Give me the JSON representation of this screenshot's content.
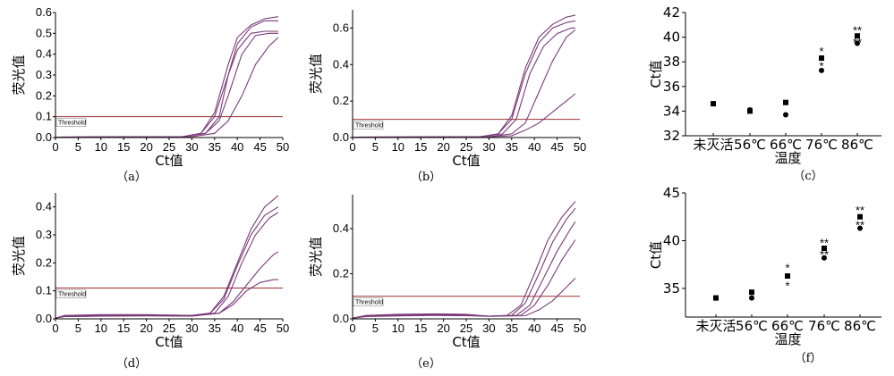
{
  "figure": {
    "background": "#ffffff",
    "curve_color": "#7a3a78",
    "threshold_color": "#9b3030"
  },
  "chart_data": [
    {
      "id": "a",
      "type": "line",
      "caption": "（a）",
      "xlabel": "Ct值",
      "ylabel": "荧光值",
      "xlim": [
        0,
        50
      ],
      "ylim": [
        0,
        0.6
      ],
      "xticks": [
        0,
        5,
        10,
        15,
        20,
        25,
        30,
        35,
        40,
        45,
        50
      ],
      "yticks": [
        0.0,
        0.1,
        0.2,
        0.3,
        0.4,
        0.5,
        0.6
      ],
      "ytick_labels": [
        "0.0",
        "0.1",
        "0.2",
        "0.3",
        "0.4",
        "0.5",
        "0.6"
      ],
      "threshold": {
        "label": "Threshold",
        "value": 0.1
      },
      "series": [
        {
          "points": [
            [
              0,
              0.002
            ],
            [
              28,
              0.004
            ],
            [
              32,
              0.02
            ],
            [
              35,
              0.12
            ],
            [
              38,
              0.35
            ],
            [
              40,
              0.48
            ],
            [
              43,
              0.54
            ],
            [
              46,
              0.57
            ],
            [
              49,
              0.58
            ]
          ]
        },
        {
          "points": [
            [
              0,
              0.002
            ],
            [
              28,
              0.004
            ],
            [
              32,
              0.02
            ],
            [
              35,
              0.1
            ],
            [
              38,
              0.3
            ],
            [
              40,
              0.45
            ],
            [
              43,
              0.53
            ],
            [
              46,
              0.56
            ],
            [
              49,
              0.56
            ]
          ]
        },
        {
          "points": [
            [
              0,
              0.002
            ],
            [
              28,
              0.004
            ],
            [
              33,
              0.02
            ],
            [
              36,
              0.1
            ],
            [
              38,
              0.3
            ],
            [
              40,
              0.42
            ],
            [
              43,
              0.5
            ],
            [
              46,
              0.51
            ],
            [
              49,
              0.51
            ]
          ]
        },
        {
          "points": [
            [
              0,
              0.002
            ],
            [
              28,
              0.004
            ],
            [
              33,
              0.02
            ],
            [
              36,
              0.08
            ],
            [
              38,
              0.2
            ],
            [
              41,
              0.4
            ],
            [
              44,
              0.49
            ],
            [
              47,
              0.5
            ],
            [
              49,
              0.5
            ]
          ]
        },
        {
          "points": [
            [
              0,
              0.002
            ],
            [
              30,
              0.004
            ],
            [
              35,
              0.02
            ],
            [
              38,
              0.08
            ],
            [
              41,
              0.2
            ],
            [
              44,
              0.35
            ],
            [
              47,
              0.44
            ],
            [
              49,
              0.48
            ]
          ]
        }
      ]
    },
    {
      "id": "b",
      "type": "line",
      "caption": "（b）",
      "xlabel": "Ct值",
      "ylabel": "荧光值",
      "xlim": [
        0,
        50
      ],
      "ylim": [
        0,
        0.7
      ],
      "xticks": [
        0,
        5,
        10,
        15,
        20,
        25,
        30,
        35,
        40,
        45,
        50
      ],
      "yticks": [
        0.0,
        0.2,
        0.4,
        0.6
      ],
      "ytick_labels": [
        "0.0",
        "0.2",
        "0.4",
        "0.6"
      ],
      "threshold": {
        "label": "Threshold",
        "value": 0.1
      },
      "series": [
        {
          "points": [
            [
              0,
              0.002
            ],
            [
              28,
              0.004
            ],
            [
              32,
              0.02
            ],
            [
              35,
              0.12
            ],
            [
              38,
              0.38
            ],
            [
              41,
              0.55
            ],
            [
              44,
              0.62
            ],
            [
              47,
              0.66
            ],
            [
              49,
              0.67
            ]
          ]
        },
        {
          "points": [
            [
              0,
              0.002
            ],
            [
              28,
              0.004
            ],
            [
              32,
              0.02
            ],
            [
              35,
              0.1
            ],
            [
              38,
              0.35
            ],
            [
              41,
              0.52
            ],
            [
              44,
              0.6
            ],
            [
              47,
              0.63
            ],
            [
              49,
              0.64
            ]
          ]
        },
        {
          "points": [
            [
              0,
              0.002
            ],
            [
              28,
              0.004
            ],
            [
              33,
              0.02
            ],
            [
              36,
              0.1
            ],
            [
              39,
              0.35
            ],
            [
              42,
              0.5
            ],
            [
              45,
              0.57
            ],
            [
              48,
              0.6
            ],
            [
              49,
              0.6
            ]
          ]
        },
        {
          "points": [
            [
              0,
              0.002
            ],
            [
              30,
              0.004
            ],
            [
              35,
              0.02
            ],
            [
              38,
              0.08
            ],
            [
              41,
              0.25
            ],
            [
              44,
              0.42
            ],
            [
              47,
              0.55
            ],
            [
              49,
              0.59
            ]
          ]
        },
        {
          "points": [
            [
              0,
              0.002
            ],
            [
              30,
              0.004
            ],
            [
              35,
              0.01
            ],
            [
              38,
              0.04
            ],
            [
              41,
              0.08
            ],
            [
              44,
              0.14
            ],
            [
              47,
              0.2
            ],
            [
              49,
              0.24
            ]
          ]
        }
      ]
    },
    {
      "id": "d",
      "type": "line",
      "caption": "（d）",
      "xlabel": "Ct值",
      "ylabel": "荧光值",
      "xlim": [
        0,
        50
      ],
      "ylim": [
        0,
        0.45
      ],
      "xticks": [
        0,
        5,
        10,
        15,
        20,
        25,
        30,
        35,
        40,
        45,
        50
      ],
      "yticks": [
        0.0,
        0.1,
        0.2,
        0.3,
        0.4
      ],
      "ytick_labels": [
        "0.0",
        "0.1",
        "0.2",
        "0.3",
        "0.4"
      ],
      "threshold": {
        "label": "Threshold",
        "value": 0.11
      },
      "series": [
        {
          "points": [
            [
              0,
              0.003
            ],
            [
              2,
              0.012
            ],
            [
              10,
              0.015
            ],
            [
              20,
              0.015
            ],
            [
              30,
              0.012
            ],
            [
              34,
              0.02
            ],
            [
              37,
              0.08
            ],
            [
              40,
              0.2
            ],
            [
              43,
              0.32
            ],
            [
              46,
              0.4
            ],
            [
              49,
              0.44
            ]
          ]
        },
        {
          "points": [
            [
              0,
              0.003
            ],
            [
              2,
              0.01
            ],
            [
              10,
              0.013
            ],
            [
              20,
              0.014
            ],
            [
              30,
              0.012
            ],
            [
              34,
              0.02
            ],
            [
              37,
              0.07
            ],
            [
              40,
              0.19
            ],
            [
              43,
              0.3
            ],
            [
              46,
              0.37
            ],
            [
              49,
              0.4
            ]
          ]
        },
        {
          "points": [
            [
              0,
              0.003
            ],
            [
              2,
              0.01
            ],
            [
              10,
              0.012
            ],
            [
              20,
              0.013
            ],
            [
              30,
              0.012
            ],
            [
              35,
              0.02
            ],
            [
              38,
              0.08
            ],
            [
              41,
              0.2
            ],
            [
              44,
              0.3
            ],
            [
              47,
              0.36
            ],
            [
              49,
              0.38
            ]
          ]
        },
        {
          "points": [
            [
              0,
              0.003
            ],
            [
              2,
              0.008
            ],
            [
              10,
              0.01
            ],
            [
              20,
              0.011
            ],
            [
              30,
              0.01
            ],
            [
              36,
              0.02
            ],
            [
              39,
              0.06
            ],
            [
              42,
              0.12
            ],
            [
              45,
              0.18
            ],
            [
              48,
              0.23
            ],
            [
              49,
              0.24
            ]
          ]
        },
        {
          "points": [
            [
              0,
              0.003
            ],
            [
              2,
              0.008
            ],
            [
              10,
              0.01
            ],
            [
              20,
              0.011
            ],
            [
              30,
              0.01
            ],
            [
              36,
              0.02
            ],
            [
              39,
              0.05
            ],
            [
              42,
              0.1
            ],
            [
              45,
              0.13
            ],
            [
              48,
              0.14
            ],
            [
              49,
              0.14
            ]
          ]
        }
      ]
    },
    {
      "id": "e",
      "type": "line",
      "caption": "（e）",
      "xlabel": "Ct值",
      "ylabel": "荧光值",
      "xlim": [
        0,
        50
      ],
      "ylim": [
        0,
        0.55
      ],
      "xticks": [
        0,
        5,
        10,
        15,
        20,
        25,
        30,
        35,
        40,
        45,
        50
      ],
      "yticks": [
        0.0,
        0.2,
        0.4
      ],
      "ytick_labels": [
        "0.0",
        "0.2",
        "0.4"
      ],
      "threshold": {
        "label": "Threshold",
        "value": 0.1
      },
      "series": [
        {
          "points": [
            [
              0,
              0.003
            ],
            [
              3,
              0.015
            ],
            [
              10,
              0.02
            ],
            [
              18,
              0.022
            ],
            [
              25,
              0.02
            ],
            [
              30,
              0.012
            ],
            [
              34,
              0.015
            ],
            [
              37,
              0.06
            ],
            [
              40,
              0.2
            ],
            [
              43,
              0.35
            ],
            [
              46,
              0.45
            ],
            [
              49,
              0.52
            ]
          ]
        },
        {
          "points": [
            [
              0,
              0.003
            ],
            [
              3,
              0.013
            ],
            [
              10,
              0.018
            ],
            [
              18,
              0.02
            ],
            [
              25,
              0.018
            ],
            [
              30,
              0.012
            ],
            [
              35,
              0.015
            ],
            [
              38,
              0.07
            ],
            [
              41,
              0.2
            ],
            [
              44,
              0.34
            ],
            [
              47,
              0.44
            ],
            [
              49,
              0.49
            ]
          ]
        },
        {
          "points": [
            [
              0,
              0.003
            ],
            [
              3,
              0.012
            ],
            [
              10,
              0.016
            ],
            [
              18,
              0.018
            ],
            [
              25,
              0.017
            ],
            [
              30,
              0.012
            ],
            [
              36,
              0.015
            ],
            [
              39,
              0.06
            ],
            [
              42,
              0.18
            ],
            [
              45,
              0.3
            ],
            [
              48,
              0.4
            ],
            [
              49,
              0.43
            ]
          ]
        },
        {
          "points": [
            [
              0,
              0.003
            ],
            [
              3,
              0.012
            ],
            [
              10,
              0.015
            ],
            [
              18,
              0.017
            ],
            [
              25,
              0.016
            ],
            [
              30,
              0.012
            ],
            [
              37,
              0.015
            ],
            [
              40,
              0.06
            ],
            [
              43,
              0.15
            ],
            [
              46,
              0.26
            ],
            [
              49,
              0.35
            ]
          ]
        },
        {
          "points": [
            [
              0,
              0.003
            ],
            [
              3,
              0.01
            ],
            [
              10,
              0.013
            ],
            [
              18,
              0.015
            ],
            [
              25,
              0.014
            ],
            [
              30,
              0.011
            ],
            [
              38,
              0.014
            ],
            [
              41,
              0.04
            ],
            [
              44,
              0.08
            ],
            [
              47,
              0.14
            ],
            [
              49,
              0.18
            ]
          ]
        }
      ]
    },
    {
      "id": "c",
      "type": "scatter",
      "caption": "（c）",
      "xlabel": "温度",
      "ylabel": "Ct值",
      "categories": [
        "未灭活",
        "56℃",
        "66℃",
        "76℃",
        "86℃"
      ],
      "ylim": [
        32,
        42
      ],
      "yticks": [
        32,
        34,
        36,
        38,
        40,
        42
      ],
      "series": [
        {
          "marker": "square",
          "values": [
            34.6,
            34.0,
            34.7,
            38.3,
            40.1
          ]
        },
        {
          "marker": "circle",
          "values": [
            34.6,
            34.1,
            33.7,
            37.3,
            39.5
          ]
        }
      ],
      "significance": [
        {
          "category": "76℃",
          "text": "*",
          "value": 38.9
        },
        {
          "category": "76℃",
          "text": "*",
          "value": 37.7
        },
        {
          "category": "86℃",
          "text": "**",
          "value": 40.6
        },
        {
          "category": "86℃",
          "text": "**",
          "value": 39.6
        }
      ]
    },
    {
      "id": "f",
      "type": "scatter",
      "caption": "（f）",
      "xlabel": "温度",
      "ylabel": "Ct值",
      "categories": [
        "未灭活",
        "56℃",
        "66℃",
        "76℃",
        "86℃"
      ],
      "ylim": [
        32,
        45
      ],
      "yticks": [
        35,
        40,
        45
      ],
      "series": [
        {
          "marker": "square",
          "values": [
            34.0,
            34.6,
            36.3,
            39.2,
            42.5
          ]
        },
        {
          "marker": "circle",
          "values": [
            34.0,
            34.0,
            36.3,
            38.2,
            41.3
          ]
        }
      ],
      "significance": [
        {
          "category": "66℃",
          "text": "*",
          "value": 37.2
        },
        {
          "category": "66℃",
          "text": "*",
          "value": 35.3
        },
        {
          "category": "76℃",
          "text": "**",
          "value": 39.8
        },
        {
          "category": "76℃",
          "text": "**",
          "value": 38.6
        },
        {
          "category": "86℃",
          "text": "**",
          "value": 43.2
        },
        {
          "category": "86℃",
          "text": "**",
          "value": 41.7
        }
      ]
    }
  ]
}
